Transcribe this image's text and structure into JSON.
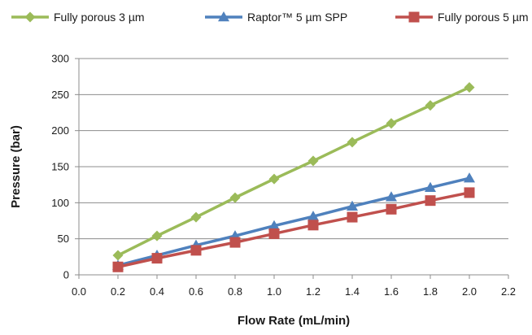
{
  "chart_data": {
    "type": "line",
    "title": "",
    "xlabel": "Flow Rate (mL/min)",
    "ylabel": "Pressure (bar)",
    "xlim": [
      0,
      2.2
    ],
    "ylim": [
      0,
      300
    ],
    "x_ticks": [
      "0.0",
      "0.2",
      "0.4",
      "0.6",
      "0.8",
      "1.0",
      "1.2",
      "1.4",
      "1.6",
      "1.8",
      "2.0",
      "2.2"
    ],
    "y_ticks": [
      "0",
      "50",
      "100",
      "150",
      "200",
      "250",
      "300"
    ],
    "grid": "horizontal",
    "legend_position": "top",
    "x": [
      0.2,
      0.4,
      0.6,
      0.8,
      1.0,
      1.2,
      1.4,
      1.6,
      1.8,
      2.0
    ],
    "series": [
      {
        "name": "Fully porous 3 µm",
        "color": "#9bbb59",
        "marker": "diamond",
        "values": [
          27,
          54,
          80,
          107,
          133,
          158,
          184,
          210,
          235,
          260
        ]
      },
      {
        "name": "Raptor™ 5 µm SPP",
        "color": "#4f81bd",
        "marker": "triangle",
        "values": [
          13,
          27,
          41,
          54,
          68,
          81,
          95,
          108,
          121,
          134
        ]
      },
      {
        "name": "Fully porous 5 µm",
        "color": "#c0504d",
        "marker": "square",
        "values": [
          11,
          23,
          34,
          45,
          57,
          69,
          80,
          91,
          103,
          114
        ]
      }
    ]
  }
}
